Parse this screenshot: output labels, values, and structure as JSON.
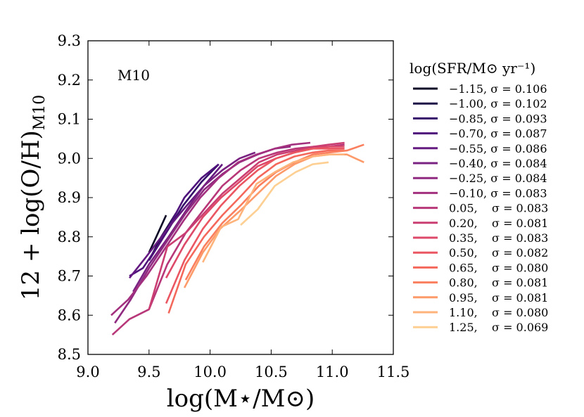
{
  "chart_data": {
    "type": "line",
    "annotation": "M10",
    "xlabel": "log(M⋆/M⊙)",
    "ylabel": "12 + log(O/H)",
    "ylabel_subscript": "M10",
    "xlim": [
      9.0,
      11.5
    ],
    "ylim": [
      8.5,
      9.3
    ],
    "x_ticks": [
      "9.0",
      "9.5",
      "10.0",
      "10.5",
      "11.0",
      "11.5"
    ],
    "y_ticks": [
      "8.5",
      "8.6",
      "8.7",
      "8.8",
      "8.9",
      "9.0",
      "9.1",
      "9.2",
      "9.3"
    ],
    "grid": false,
    "legend_title": "log(SFR/M⊙ yr⁻¹)",
    "legend_position": "outside-right",
    "series": [
      {
        "name": "−1.15, σ = 0.106",
        "color": "#0c0927",
        "x": [
          9.5,
          9.56,
          9.64
        ],
        "y": [
          8.76,
          8.8,
          8.855
        ]
      },
      {
        "name": "−1.00, σ = 0.102",
        "color": "#1d1147",
        "x": [
          9.5,
          9.6,
          9.72
        ],
        "y": [
          8.74,
          8.8,
          8.86
        ]
      },
      {
        "name": "−0.85, σ = 0.093",
        "color": "#35106a",
        "x": [
          9.5,
          9.62,
          9.78,
          9.93,
          10.07
        ],
        "y": [
          8.74,
          8.8,
          8.88,
          8.94,
          8.985
        ]
      },
      {
        "name": "−0.70, σ = 0.087",
        "color": "#4e117b",
        "x": [
          9.34,
          9.45,
          9.6,
          9.79,
          9.93,
          10.07
        ],
        "y": [
          8.7,
          8.72,
          8.79,
          8.9,
          8.95,
          8.985
        ]
      },
      {
        "name": "−0.55, σ = 0.086",
        "color": "#641a80",
        "x": [
          9.34,
          9.48,
          9.65,
          9.81,
          9.95,
          10.1
        ],
        "y": [
          8.695,
          8.75,
          8.82,
          8.88,
          8.93,
          8.985
        ]
      },
      {
        "name": "−0.40, σ = 0.084",
        "color": "#7a2281",
        "x": [
          9.37,
          9.5,
          9.66,
          9.81,
          9.95,
          10.1,
          10.24,
          10.37
        ],
        "y": [
          8.66,
          8.73,
          8.8,
          8.87,
          8.93,
          8.97,
          9.0,
          9.015
        ]
      },
      {
        "name": "−0.25, σ = 0.084",
        "color": "#8f2a80",
        "x": [
          9.22,
          9.35,
          9.5,
          9.65,
          9.8,
          9.95,
          10.1,
          10.24,
          10.39,
          10.53,
          10.66
        ],
        "y": [
          8.58,
          8.64,
          8.72,
          8.79,
          8.86,
          8.92,
          8.96,
          8.99,
          9.01,
          9.025,
          9.03
        ]
      },
      {
        "name": "−0.10, σ = 0.083",
        "color": "#a3307e",
        "x": [
          9.19,
          9.33,
          9.48,
          9.63,
          9.78,
          9.92,
          10.07,
          10.23,
          10.38,
          10.53,
          10.67,
          10.82
        ],
        "y": [
          8.6,
          8.64,
          8.7,
          8.77,
          8.84,
          8.9,
          8.95,
          8.99,
          9.01,
          9.025,
          9.035,
          9.04
        ]
      },
      {
        "name": "0.05,    σ = 0.083",
        "color": "#b73779",
        "x": [
          9.2,
          9.34,
          9.5,
          9.65,
          9.8,
          9.95,
          10.1,
          10.25,
          10.4,
          10.55,
          10.7,
          10.85,
          10.97,
          11.1
        ],
        "y": [
          8.55,
          8.59,
          8.615,
          8.73,
          8.81,
          8.87,
          8.93,
          8.97,
          9.0,
          9.015,
          9.025,
          9.03,
          9.03,
          9.035
        ]
      },
      {
        "name": "0.20,    σ = 0.081",
        "color": "#ca3e72",
        "x": [
          9.5,
          9.65,
          9.8,
          9.95,
          10.1,
          10.25,
          10.4,
          10.55,
          10.7,
          10.85,
          10.97,
          11.1
        ],
        "y": [
          8.615,
          8.775,
          8.81,
          8.86,
          8.91,
          8.95,
          8.99,
          9.01,
          9.02,
          9.03,
          9.035,
          9.04
        ]
      },
      {
        "name": "0.35,    σ = 0.083",
        "color": "#dd4968",
        "x": [
          9.64,
          9.79,
          9.94,
          10.09,
          10.24,
          10.39,
          10.54,
          10.69,
          10.84,
          10.97,
          11.1
        ],
        "y": [
          8.695,
          8.78,
          8.85,
          8.9,
          8.94,
          8.98,
          9.0,
          9.015,
          9.025,
          9.03,
          9.03
        ]
      },
      {
        "name": "0.50,    σ = 0.082",
        "color": "#ea5661",
        "x": [
          9.64,
          9.79,
          9.94,
          10.09,
          10.24,
          10.39,
          10.54,
          10.69,
          10.84,
          10.97,
          11.1
        ],
        "y": [
          8.63,
          8.74,
          8.82,
          8.88,
          8.93,
          8.97,
          9.0,
          9.015,
          9.025,
          9.025,
          9.025
        ]
      },
      {
        "name": "0.65,    σ = 0.080",
        "color": "#f4685c",
        "x": [
          9.66,
          9.8,
          9.95,
          10.1,
          10.24,
          10.39,
          10.54,
          10.69,
          10.84,
          10.97,
          11.1
        ],
        "y": [
          8.605,
          8.73,
          8.8,
          8.855,
          8.9,
          8.95,
          8.985,
          9.005,
          9.015,
          9.02,
          9.02
        ]
      },
      {
        "name": "0.80,    σ = 0.081",
        "color": "#fa7f5e",
        "x": [
          9.8,
          9.95,
          10.1,
          10.25,
          10.4,
          10.54,
          10.69,
          10.84,
          10.97,
          11.12,
          11.26
        ],
        "y": [
          8.69,
          8.775,
          8.835,
          8.88,
          8.93,
          8.965,
          8.99,
          9.01,
          9.015,
          9.02,
          9.035
        ]
      },
      {
        "name": "0.95,    σ = 0.081",
        "color": "#fd9a6a",
        "x": [
          9.79,
          9.94,
          10.08,
          10.24,
          10.39,
          10.54,
          10.69,
          10.84,
          10.97,
          11.12,
          11.26
        ],
        "y": [
          8.67,
          8.76,
          8.82,
          8.865,
          8.91,
          8.955,
          8.985,
          9.005,
          9.01,
          9.01,
          8.99
        ]
      },
      {
        "name": "1.10,    σ = 0.080",
        "color": "#feb37b",
        "x": [
          9.94,
          10.09,
          10.23,
          10.38,
          10.53,
          10.68,
          10.84,
          10.98,
          11.1
        ],
        "y": [
          8.735,
          8.825,
          8.845,
          8.935,
          8.965,
          8.99,
          9.005,
          9.01,
          9.01
        ]
      },
      {
        "name": "1.25,    σ = 0.069",
        "color": "#fecf92",
        "x": [
          10.25,
          10.39,
          10.53,
          10.7,
          10.84,
          10.97
        ],
        "y": [
          8.83,
          8.87,
          8.93,
          8.965,
          8.985,
          8.99
        ]
      }
    ]
  }
}
